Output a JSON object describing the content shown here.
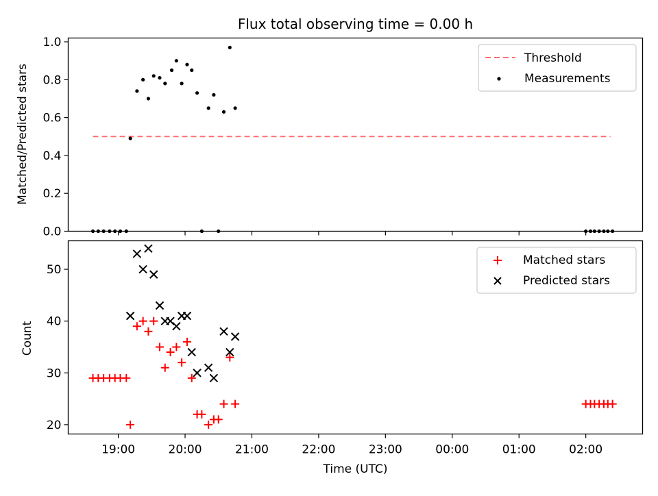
{
  "title": "Flux total observing time = 0.00 h",
  "colors": {
    "threshold": "#ff7070",
    "matched": "#ff0000",
    "predicted": "#000000",
    "measurement": "#000000"
  },
  "chart_data": [
    {
      "type": "scatter",
      "panel": "top",
      "title": "Flux total observing time = 0.00 h",
      "xlabel": "",
      "ylabel": "Matched/Predicted stars",
      "ylim": [
        0,
        1.02
      ],
      "xlim_hours": [
        18.25,
        26.85
      ],
      "y_ticks": [
        "0.0",
        "0.2",
        "0.4",
        "0.6",
        "0.8",
        "1.0"
      ],
      "legend_position": "upper right",
      "series": [
        {
          "name": "Threshold",
          "kind": "dashed-line",
          "points": [
            [
              18.62,
              0.5
            ],
            [
              26.37,
              0.5
            ]
          ]
        },
        {
          "name": "Measurements",
          "kind": "dots",
          "points": [
            [
              18.62,
              0.0
            ],
            [
              18.7,
              0.0
            ],
            [
              18.78,
              0.0
            ],
            [
              18.87,
              0.0
            ],
            [
              18.95,
              0.0
            ],
            [
              19.03,
              0.0
            ],
            [
              19.12,
              0.0
            ],
            [
              19.18,
              0.49
            ],
            [
              19.28,
              0.74
            ],
            [
              19.37,
              0.8
            ],
            [
              19.45,
              0.7
            ],
            [
              19.53,
              0.82
            ],
            [
              19.62,
              0.81
            ],
            [
              19.7,
              0.78
            ],
            [
              19.8,
              0.85
            ],
            [
              19.87,
              0.9
            ],
            [
              19.95,
              0.78
            ],
            [
              20.03,
              0.88
            ],
            [
              20.1,
              0.85
            ],
            [
              20.18,
              0.73
            ],
            [
              20.25,
              0.0
            ],
            [
              20.35,
              0.65
            ],
            [
              20.43,
              0.72
            ],
            [
              20.5,
              0.0
            ],
            [
              20.58,
              0.63
            ],
            [
              20.67,
              0.97
            ],
            [
              20.75,
              0.65
            ],
            [
              26.0,
              0.0
            ],
            [
              26.07,
              0.0
            ],
            [
              26.13,
              0.0
            ],
            [
              26.2,
              0.0
            ],
            [
              26.27,
              0.0
            ],
            [
              26.33,
              0.0
            ],
            [
              26.4,
              0.0
            ]
          ]
        }
      ]
    },
    {
      "type": "scatter",
      "panel": "bottom",
      "xlabel": "Time (UTC)",
      "ylabel": "Count",
      "ylim": [
        18.2,
        55.5
      ],
      "xlim_hours": [
        18.25,
        26.85
      ],
      "y_ticks": [
        "20",
        "30",
        "40",
        "50"
      ],
      "x_ticks": [
        {
          "h": 19,
          "label": "19:00"
        },
        {
          "h": 20,
          "label": "20:00"
        },
        {
          "h": 21,
          "label": "21:00"
        },
        {
          "h": 22,
          "label": "22:00"
        },
        {
          "h": 23,
          "label": "23:00"
        },
        {
          "h": 24,
          "label": "00:00"
        },
        {
          "h": 25,
          "label": "01:00"
        },
        {
          "h": 26,
          "label": "02:00"
        }
      ],
      "legend_position": "upper right",
      "series": [
        {
          "name": "Matched stars",
          "marker": "+",
          "points": [
            [
              18.62,
              29
            ],
            [
              18.7,
              29
            ],
            [
              18.78,
              29
            ],
            [
              18.87,
              29
            ],
            [
              18.95,
              29
            ],
            [
              19.03,
              29
            ],
            [
              19.12,
              29
            ],
            [
              19.18,
              20
            ],
            [
              19.28,
              39
            ],
            [
              19.37,
              40
            ],
            [
              19.45,
              38
            ],
            [
              19.53,
              40
            ],
            [
              19.62,
              35
            ],
            [
              19.7,
              31
            ],
            [
              19.78,
              34
            ],
            [
              19.87,
              35
            ],
            [
              19.95,
              32
            ],
            [
              20.03,
              36
            ],
            [
              20.1,
              29
            ],
            [
              20.18,
              22
            ],
            [
              20.25,
              22
            ],
            [
              20.35,
              20
            ],
            [
              20.43,
              21
            ],
            [
              20.5,
              21
            ],
            [
              20.58,
              24
            ],
            [
              20.67,
              33
            ],
            [
              20.75,
              24
            ],
            [
              26.0,
              24
            ],
            [
              26.07,
              24
            ],
            [
              26.13,
              24
            ],
            [
              26.2,
              24
            ],
            [
              26.27,
              24
            ],
            [
              26.33,
              24
            ],
            [
              26.4,
              24
            ]
          ]
        },
        {
          "name": "Predicted stars",
          "marker": "x",
          "points": [
            [
              19.18,
              41
            ],
            [
              19.28,
              53
            ],
            [
              19.37,
              50
            ],
            [
              19.45,
              54
            ],
            [
              19.53,
              49
            ],
            [
              19.62,
              43
            ],
            [
              19.7,
              40
            ],
            [
              19.78,
              40
            ],
            [
              19.87,
              39
            ],
            [
              19.95,
              41
            ],
            [
              20.03,
              41
            ],
            [
              20.1,
              34
            ],
            [
              20.18,
              30
            ],
            [
              20.35,
              31
            ],
            [
              20.43,
              29
            ],
            [
              20.58,
              38
            ],
            [
              20.67,
              34
            ],
            [
              20.75,
              37
            ]
          ]
        }
      ]
    }
  ]
}
